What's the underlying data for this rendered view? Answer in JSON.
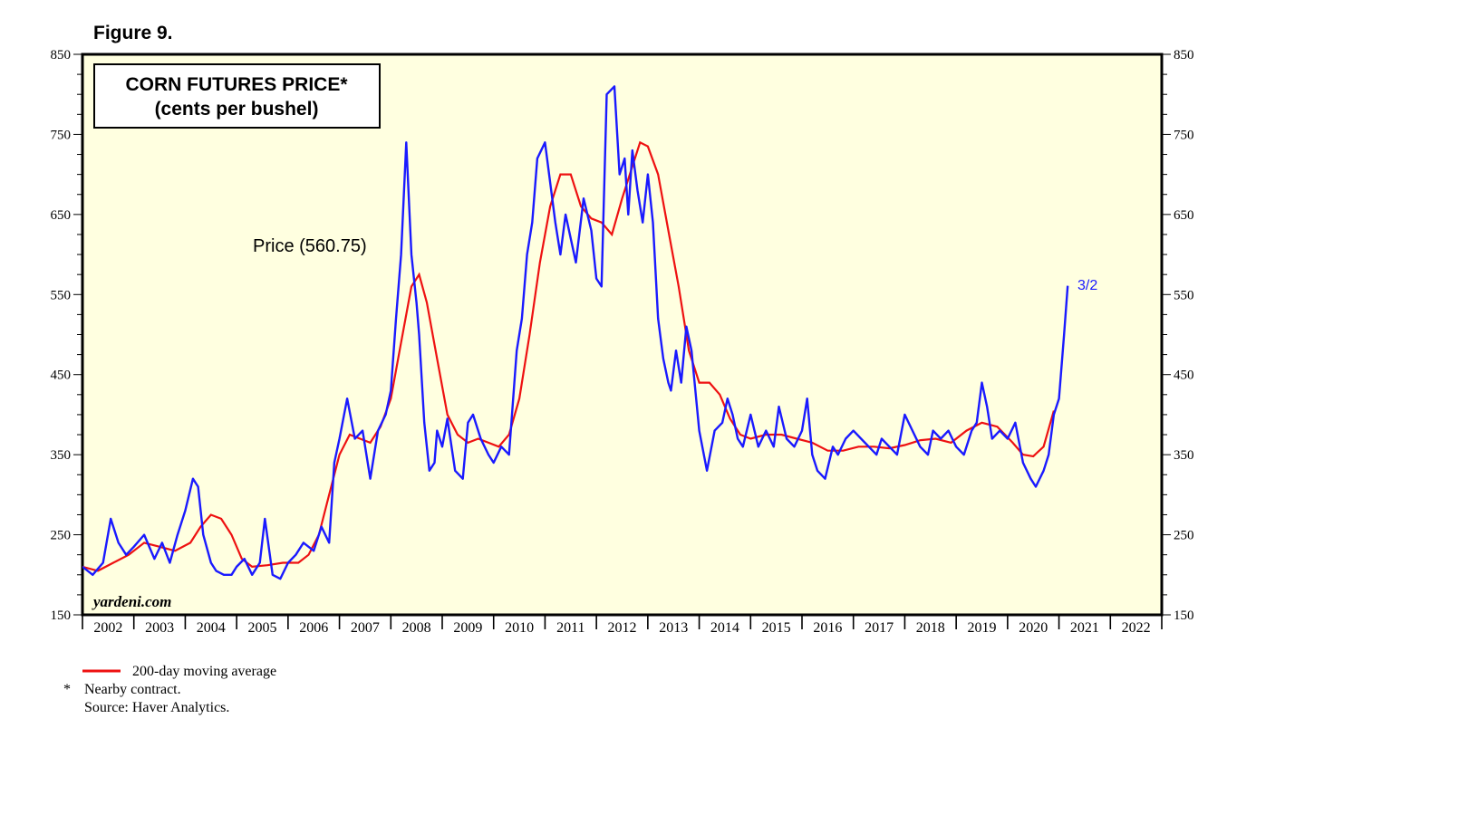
{
  "figure_label": "Figure 9.",
  "chart_data": {
    "type": "line",
    "title": "CORN FUTURES PRICE*",
    "subtitle": "(cents per bushel)",
    "ylim": [
      150,
      850
    ],
    "yticks": [
      150,
      250,
      350,
      450,
      550,
      650,
      750,
      850
    ],
    "yticks_labels": [
      "150",
      "250",
      "350",
      "450",
      "550",
      "650",
      "750",
      "850"
    ],
    "xlim": [
      2002,
      2023
    ],
    "x_labels": [
      "2002",
      "2003",
      "2004",
      "2005",
      "2006",
      "2007",
      "2008",
      "2009",
      "2010",
      "2011",
      "2012",
      "2013",
      "2014",
      "2015",
      "2016",
      "2017",
      "2018",
      "2019",
      "2020",
      "2021",
      "2022"
    ],
    "grid": false,
    "annotation": "Price (560.75)",
    "end_label": "3/2",
    "watermark": "yardeni.com",
    "colors": {
      "price": "#1a1aff",
      "moving_average": "#ee1111",
      "plot_bg": "#ffffe0"
    },
    "series": [
      {
        "name": "Price",
        "x": [
          2002.0,
          2002.2,
          2002.4,
          2002.55,
          2002.7,
          2002.85,
          2003.0,
          2003.2,
          2003.4,
          2003.55,
          2003.7,
          2003.85,
          2004.0,
          2004.15,
          2004.25,
          2004.35,
          2004.5,
          2004.6,
          2004.75,
          2004.9,
          2005.0,
          2005.15,
          2005.3,
          2005.45,
          2005.55,
          2005.7,
          2005.85,
          2006.0,
          2006.15,
          2006.3,
          2006.5,
          2006.65,
          2006.8,
          2006.9,
          2007.0,
          2007.15,
          2007.3,
          2007.45,
          2007.6,
          2007.75,
          2007.9,
          2008.0,
          2008.1,
          2008.2,
          2008.3,
          2008.4,
          2008.5,
          2008.55,
          2008.65,
          2008.75,
          2008.85,
          2008.9,
          2009.0,
          2009.1,
          2009.25,
          2009.4,
          2009.5,
          2009.6,
          2009.75,
          2009.9,
          2010.0,
          2010.15,
          2010.3,
          2010.45,
          2010.55,
          2010.65,
          2010.75,
          2010.85,
          2011.0,
          2011.1,
          2011.2,
          2011.3,
          2011.4,
          2011.5,
          2011.6,
          2011.75,
          2011.9,
          2012.0,
          2012.1,
          2012.2,
          2012.35,
          2012.45,
          2012.55,
          2012.62,
          2012.7,
          2012.8,
          2012.9,
          2013.0,
          2013.1,
          2013.2,
          2013.3,
          2013.4,
          2013.45,
          2013.55,
          2013.65,
          2013.75,
          2013.85,
          2014.0,
          2014.15,
          2014.3,
          2014.45,
          2014.55,
          2014.65,
          2014.75,
          2014.85,
          2015.0,
          2015.15,
          2015.3,
          2015.45,
          2015.55,
          2015.7,
          2015.85,
          2016.0,
          2016.1,
          2016.2,
          2016.3,
          2016.45,
          2016.6,
          2016.7,
          2016.85,
          2017.0,
          2017.15,
          2017.3,
          2017.45,
          2017.55,
          2017.7,
          2017.85,
          2018.0,
          2018.15,
          2018.3,
          2018.45,
          2018.55,
          2018.7,
          2018.85,
          2019.0,
          2019.15,
          2019.3,
          2019.4,
          2019.5,
          2019.6,
          2019.7,
          2019.85,
          2020.0,
          2020.15,
          2020.3,
          2020.45,
          2020.55,
          2020.7,
          2020.8,
          2020.9,
          2021.0,
          2021.1,
          2021.17
        ],
        "values": [
          210,
          200,
          215,
          270,
          240,
          225,
          235,
          250,
          220,
          240,
          215,
          250,
          280,
          320,
          310,
          250,
          215,
          205,
          200,
          200,
          210,
          220,
          200,
          215,
          270,
          200,
          195,
          215,
          225,
          240,
          230,
          260,
          240,
          340,
          370,
          420,
          370,
          380,
          320,
          380,
          400,
          430,
          520,
          600,
          740,
          600,
          540,
          500,
          390,
          330,
          340,
          380,
          360,
          395,
          330,
          320,
          390,
          400,
          370,
          350,
          340,
          360,
          350,
          480,
          520,
          600,
          640,
          720,
          740,
          690,
          640,
          600,
          650,
          620,
          590,
          670,
          630,
          570,
          560,
          800,
          810,
          700,
          720,
          650,
          730,
          680,
          640,
          700,
          640,
          520,
          470,
          440,
          430,
          480,
          440,
          510,
          480,
          380,
          330,
          380,
          390,
          420,
          400,
          370,
          360,
          400,
          360,
          380,
          360,
          410,
          370,
          360,
          380,
          420,
          350,
          330,
          320,
          360,
          350,
          370,
          380,
          370,
          360,
          350,
          370,
          360,
          350,
          400,
          380,
          360,
          350,
          380,
          370,
          380,
          360,
          350,
          380,
          390,
          440,
          410,
          370,
          380,
          370,
          390,
          340,
          320,
          310,
          330,
          350,
          400,
          420,
          500,
          561
        ]
      },
      {
        "name": "200-day moving average",
        "x": [
          2002.0,
          2002.3,
          2002.6,
          2002.9,
          2003.2,
          2003.5,
          2003.8,
          2004.1,
          2004.3,
          2004.5,
          2004.7,
          2004.9,
          2005.1,
          2005.3,
          2005.6,
          2005.9,
          2006.2,
          2006.4,
          2006.6,
          2006.8,
          2007.0,
          2007.2,
          2007.4,
          2007.6,
          2007.8,
          2008.0,
          2008.2,
          2008.4,
          2008.55,
          2008.7,
          2008.9,
          2009.1,
          2009.3,
          2009.5,
          2009.7,
          2009.9,
          2010.1,
          2010.3,
          2010.5,
          2010.7,
          2010.9,
          2011.1,
          2011.3,
          2011.5,
          2011.7,
          2011.9,
          2012.1,
          2012.3,
          2012.5,
          2012.7,
          2012.85,
          2013.0,
          2013.2,
          2013.4,
          2013.6,
          2013.8,
          2014.0,
          2014.2,
          2014.4,
          2014.6,
          2014.8,
          2015.0,
          2015.3,
          2015.6,
          2015.9,
          2016.2,
          2016.5,
          2016.8,
          2017.1,
          2017.4,
          2017.7,
          2018.0,
          2018.3,
          2018.6,
          2018.9,
          2019.2,
          2019.5,
          2019.8,
          2020.1,
          2020.3,
          2020.5,
          2020.7,
          2020.9,
          2021.0,
          2021.17
        ],
        "values": [
          210,
          205,
          215,
          225,
          240,
          235,
          230,
          240,
          260,
          275,
          270,
          250,
          220,
          210,
          212,
          215,
          215,
          225,
          250,
          300,
          350,
          375,
          370,
          365,
          385,
          420,
          490,
          560,
          575,
          540,
          470,
          400,
          375,
          365,
          370,
          365,
          360,
          375,
          420,
          500,
          590,
          660,
          700,
          700,
          660,
          645,
          640,
          625,
          670,
          710,
          740,
          735,
          700,
          630,
          560,
          480,
          440,
          440,
          425,
          395,
          375,
          370,
          375,
          375,
          370,
          365,
          355,
          355,
          360,
          360,
          358,
          362,
          368,
          370,
          365,
          380,
          390,
          385,
          365,
          350,
          348,
          360,
          405,
          null,
          null
        ]
      }
    ]
  },
  "legend": {
    "moving_average_label": "200-day moving average"
  },
  "footnotes": {
    "star": "*",
    "note": "Nearby contract.",
    "source": "Source: Haver Analytics."
  }
}
